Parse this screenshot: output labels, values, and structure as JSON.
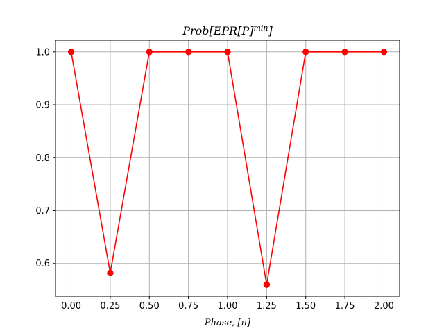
{
  "chart_data": {
    "type": "line",
    "title_main": "Prob[EPR[P]",
    "title_sup": "min",
    "title_close": "]",
    "xlabel": "Phase, [π]",
    "ylabel": "",
    "x": [
      0.0,
      0.25,
      0.5,
      0.75,
      1.0,
      1.25,
      1.5,
      1.75,
      2.0
    ],
    "series": [
      {
        "values": [
          1.0,
          0.582,
          1.0,
          1.0,
          1.0,
          0.56,
          1.0,
          1.0,
          1.0
        ],
        "color": "#ff0000",
        "marker": "circle"
      }
    ],
    "xticks": [
      "0.00",
      "0.25",
      "0.50",
      "0.75",
      "1.00",
      "1.25",
      "1.50",
      "1.75",
      "2.00"
    ],
    "xtick_values": [
      0.0,
      0.25,
      0.5,
      0.75,
      1.0,
      1.25,
      1.5,
      1.75,
      2.0
    ],
    "yticks": [
      "0.6",
      "0.7",
      "0.8",
      "0.9",
      "1.0"
    ],
    "ytick_values": [
      0.6,
      0.7,
      0.8,
      0.9,
      1.0
    ],
    "xlim": [
      -0.1,
      2.1
    ],
    "ylim": [
      0.538,
      1.022
    ],
    "grid": true,
    "grid_color": "#b0b0b0"
  }
}
